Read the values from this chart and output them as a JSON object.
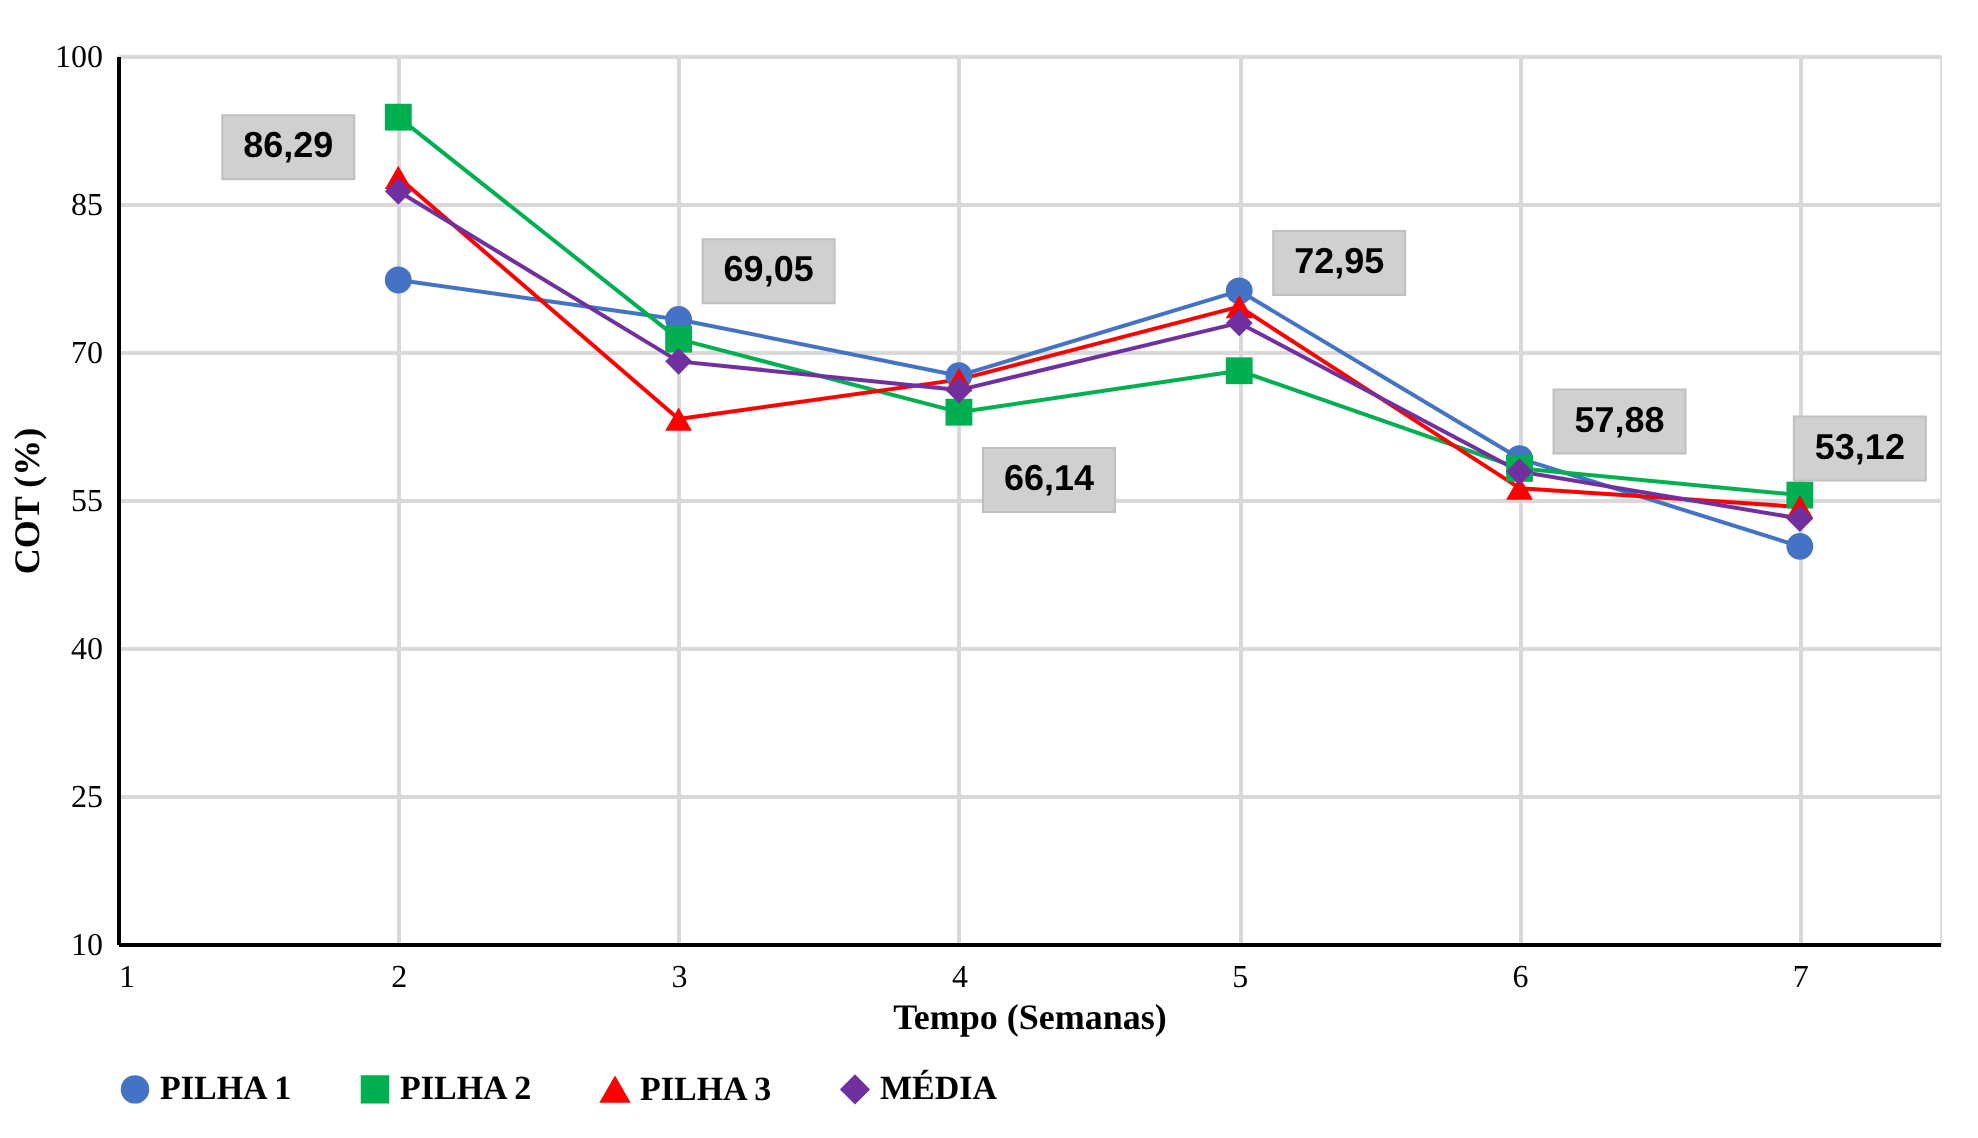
{
  "chart_data": {
    "type": "line",
    "xlabel": "Tempo (Semanas)",
    "ylabel": "COT (%)",
    "x": [
      2,
      3,
      4,
      5,
      6,
      7
    ],
    "series": [
      {
        "name": "PILHA 1",
        "color": "#4472c4",
        "marker": "circle",
        "values": [
          77.3,
          73.3,
          67.6,
          76.2,
          59.2,
          50.3
        ]
      },
      {
        "name": "PILHA 2",
        "color": "#00b050",
        "marker": "square",
        "values": [
          93.8,
          71.3,
          63.9,
          68.1,
          58.2,
          55.5
        ]
      },
      {
        "name": "PILHA 3",
        "color": "#ff0000",
        "marker": "triangle",
        "values": [
          87.7,
          63.2,
          67.2,
          74.6,
          56.2,
          54.3
        ]
      },
      {
        "name": "MÉDIA",
        "color": "#7030a0",
        "marker": "diamond",
        "values": [
          86.29,
          69.05,
          66.14,
          72.95,
          57.88,
          53.12
        ],
        "value_labels": [
          "86,29",
          "69,05",
          "66,14",
          "72,95",
          "57,88",
          "53,12"
        ]
      }
    ],
    "xlim": [
      1,
      7.5
    ],
    "xticks": [
      1,
      2,
      3,
      4,
      5,
      6,
      7
    ],
    "ylim": [
      10,
      100
    ],
    "yticks": [
      10,
      25,
      40,
      55,
      70,
      85,
      100
    ],
    "grid": true,
    "legend": "bottom"
  }
}
